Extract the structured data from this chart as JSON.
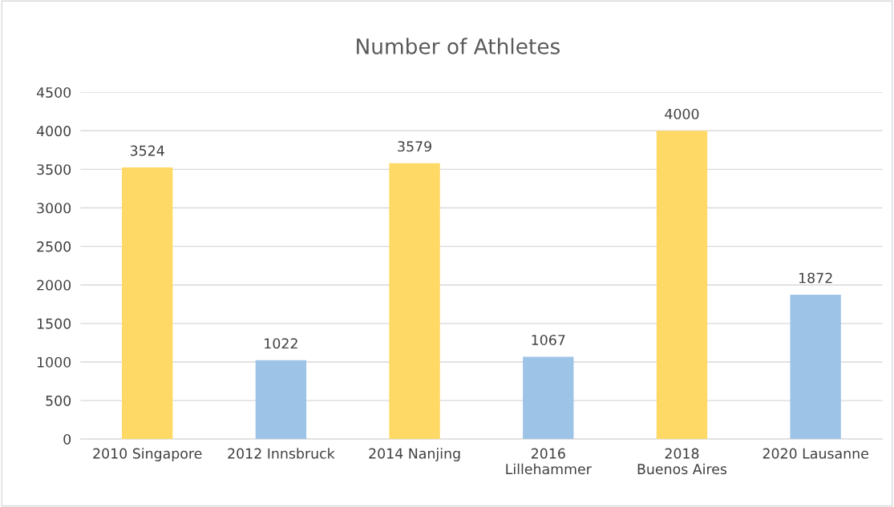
{
  "chart_data": {
    "type": "bar",
    "title": "Number of Athletes",
    "categories": [
      "2010 Singapore",
      "2012 Innsbruck",
      "2014 Nanjing",
      "2016 Lillehammer",
      "2018 Buenos Aires",
      "2020 Lausanne"
    ],
    "values": [
      3524,
      1022,
      3579,
      1067,
      4000,
      1872
    ],
    "colors": [
      "#ffd966",
      "#9dc3e6",
      "#ffd966",
      "#9dc3e6",
      "#ffd966",
      "#9dc3e6"
    ],
    "ylim": [
      0,
      4500
    ],
    "yticks": [
      0,
      500,
      1000,
      1500,
      2000,
      2500,
      3000,
      3500,
      4000,
      4500
    ],
    "grid": "y",
    "data_labels": true
  }
}
